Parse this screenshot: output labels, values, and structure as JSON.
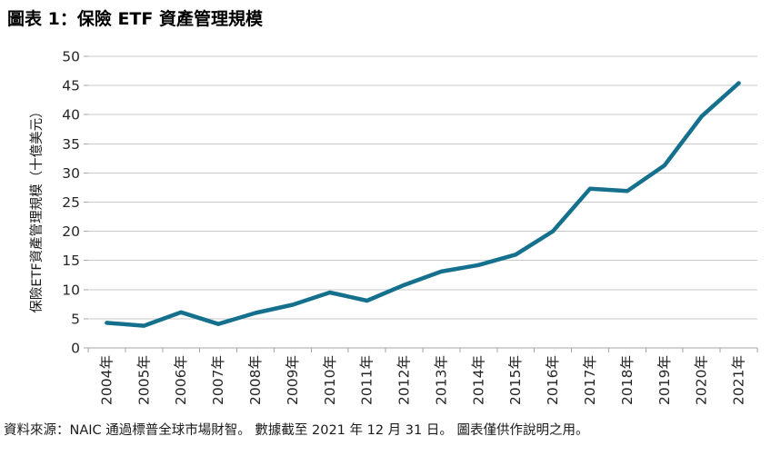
{
  "title": "圖表 1：保險 ETF 資產管理規模",
  "source_note": "資料來源：NAIC 通過標普全球市場財智。 數據截至 2021 年 12 月 31 日。 圖表僅供作說明之用。",
  "chart_data": {
    "type": "line",
    "title": "圖表 1：保險 ETF 資產管理規模",
    "xlabel": "",
    "ylabel": "保險ETF資產管理規模（十億美元）",
    "categories": [
      "2004年",
      "2005年",
      "2006年",
      "2007年",
      "2008年",
      "2009年",
      "2010年",
      "2011年",
      "2012年",
      "2013年",
      "2014年",
      "2015年",
      "2016年",
      "2017年",
      "2018年",
      "2019年",
      "2020年",
      "2021年"
    ],
    "series": [
      {
        "name": "保險ETF資產管理規模",
        "values": [
          4.3,
          3.8,
          6.1,
          4.1,
          6.0,
          7.4,
          9.5,
          8.1,
          10.8,
          13.1,
          14.2,
          16.0,
          20.0,
          27.3,
          26.9,
          31.3,
          39.7,
          45.4
        ]
      }
    ],
    "ylim": [
      0,
      50
    ],
    "y_tick_interval": 5,
    "y_tick_labels": [
      "0",
      "5",
      "10",
      "15",
      "20",
      "25",
      "30",
      "35",
      "40",
      "45",
      "50"
    ],
    "grid": "horizontal",
    "legend": "none",
    "colors": {
      "line": "#15708E",
      "grid": "#C9C9C9",
      "axis": "#A6A6A6",
      "text": "#262626"
    }
  }
}
